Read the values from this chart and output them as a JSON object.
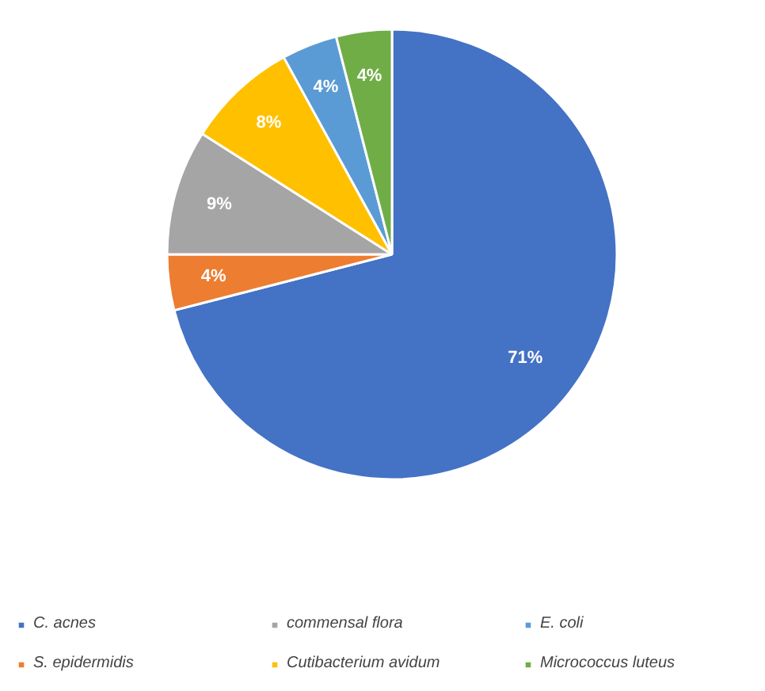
{
  "chart_data": {
    "type": "pie",
    "categories": [
      "C. acnes",
      "S. epidermidis",
      "commensal flora",
      "Cutibacterium avidum",
      "E. coli",
      "Micrococcus luteus"
    ],
    "values": [
      71,
      4,
      9,
      8,
      4,
      4
    ],
    "value_labels": [
      "71%",
      "4%",
      "9%",
      "8%",
      "4%",
      "4%"
    ],
    "colors": [
      "#4472c4",
      "#ed7d31",
      "#a5a5a5",
      "#ffc000",
      "#5b9bd5",
      "#70ad47"
    ],
    "legend": "bottom"
  }
}
